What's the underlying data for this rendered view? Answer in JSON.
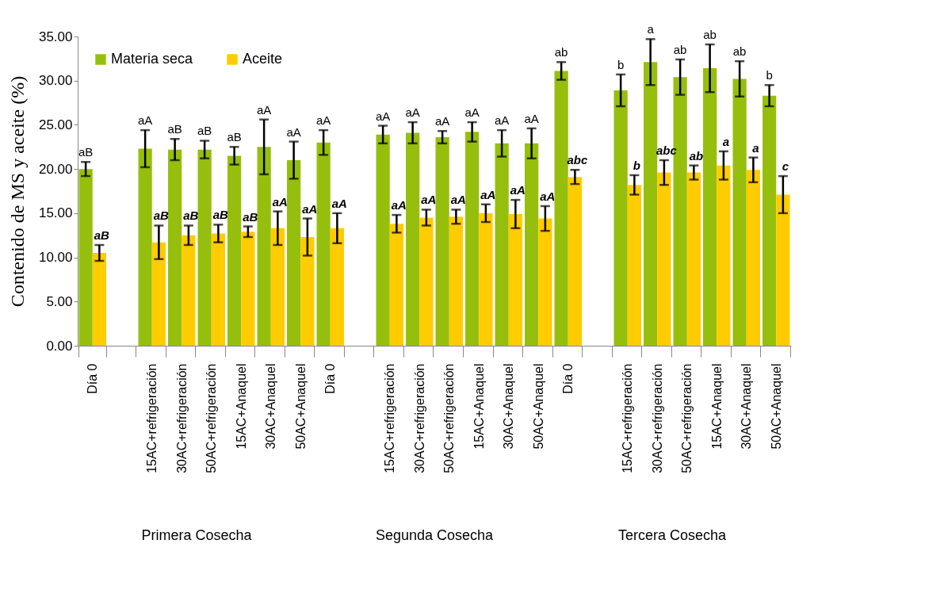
{
  "chart_data": {
    "type": "bar",
    "ylabel": "Contenido de MS y aceite (%)",
    "categories": [
      "Día 0",
      null,
      "15AC+refrigeración",
      "30AC+refrigeración",
      "50AC+refrigeración",
      "15AC+Anaquel",
      "30AC+Anaquel",
      "50AC+Anaquel",
      "Día 0",
      null,
      "15AC+refrigeración",
      "30AC+refrigeración",
      "50AC+refrigeración",
      "15AC+Anaquel",
      "30AC+Anaquel",
      "50AC+Anaquel",
      "Día 0",
      null,
      "15AC+refrigeración",
      "30AC+refrigeración",
      "50AC+refrigeración",
      "15AC+Anaquel",
      "30AC+Anaquel",
      "50AC+Anaquel"
    ],
    "series": [
      {
        "name": "Materia seca",
        "color": "#96bf0d",
        "values": [
          20.0,
          null,
          22.3,
          22.2,
          22.2,
          21.5,
          22.5,
          21.0,
          23.0,
          null,
          23.9,
          24.1,
          23.6,
          24.2,
          22.9,
          22.9,
          31.1,
          null,
          28.9,
          32.1,
          30.4,
          31.4,
          30.2,
          28.3
        ],
        "errors": [
          0.8,
          null,
          2.1,
          1.2,
          1.0,
          1.0,
          3.1,
          2.1,
          1.4,
          null,
          1.0,
          1.2,
          0.7,
          1.1,
          1.5,
          1.7,
          1.0,
          null,
          1.8,
          2.6,
          2.0,
          2.7,
          2.0,
          1.2
        ],
        "value_labels": [
          "aB",
          null,
          "aA",
          "aB",
          "aB",
          "aB",
          "aA",
          "aA",
          "aA",
          null,
          "aA",
          "aA",
          "aA",
          "aA",
          "aA",
          "aA",
          "ab",
          null,
          "b",
          "a",
          "ab",
          "ab",
          "ab",
          "b"
        ]
      },
      {
        "name": "Aceite",
        "color": "#ffcc00",
        "values": [
          10.5,
          null,
          11.7,
          12.5,
          12.7,
          12.9,
          13.3,
          12.3,
          13.3,
          null,
          13.8,
          14.5,
          14.6,
          15.0,
          14.9,
          14.4,
          19.1,
          null,
          18.2,
          19.6,
          19.6,
          20.4,
          19.9,
          17.1
        ],
        "errors": [
          0.9,
          null,
          1.9,
          1.1,
          1.0,
          0.6,
          1.9,
          2.1,
          1.7,
          null,
          1.0,
          0.9,
          0.8,
          1.0,
          1.6,
          1.4,
          0.8,
          null,
          1.1,
          1.4,
          0.8,
          1.6,
          1.4,
          2.1
        ],
        "value_labels": [
          "aB",
          null,
          "aB",
          "aB",
          "aB",
          "aB",
          "aA",
          "aA",
          "aA",
          null,
          "aA",
          "aA",
          "aA",
          "aA",
          "aA",
          "aA",
          "abc",
          null,
          "b",
          "abc",
          "ab",
          "a",
          "a",
          "c"
        ]
      }
    ],
    "ylim": [
      0,
      35
    ],
    "yticks": [
      {
        "value": 0,
        "label": "0.00"
      },
      {
        "value": 5,
        "label": "5.00"
      },
      {
        "value": 10,
        "label": "10.00"
      },
      {
        "value": 15,
        "label": "15.00"
      },
      {
        "value": 20,
        "label": "20.00"
      },
      {
        "value": 25,
        "label": "25.00"
      },
      {
        "value": 30,
        "label": "30.00"
      },
      {
        "value": 35,
        "label": "35.00"
      }
    ],
    "annotations": [
      "Primera Cosecha",
      "Segunda Cosecha",
      "Tercera Cosecha"
    ],
    "legend": "top left",
    "grid": false
  }
}
